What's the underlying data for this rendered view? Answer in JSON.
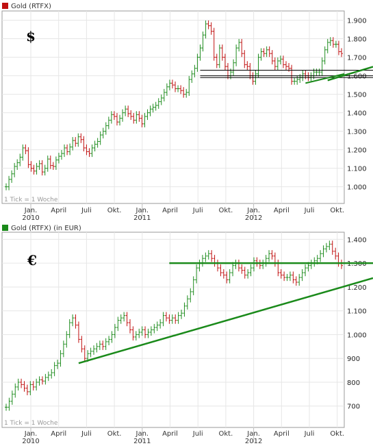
{
  "colors": {
    "up": "#1e8c1e",
    "down": "#c01010",
    "trend": "#1a8a1a",
    "grid": "#e6e6e6",
    "frame": "#9a9a9a"
  },
  "chart_data": [
    {
      "type": "ohlc",
      "legend": "Gold (RTFX)",
      "legend_color": "#c01010",
      "currency_symbol": "$",
      "tick_note": "1 Tick = 1 Woche",
      "ylim": [
        910,
        1950
      ],
      "y_ticks": [
        "1.900",
        "1.800",
        "1.700",
        "1.600",
        "1.500",
        "1.400",
        "1.300",
        "1.200",
        "1.100",
        "1.000"
      ],
      "y_tick_values": [
        1900,
        1800,
        1700,
        1600,
        1500,
        1400,
        1300,
        1200,
        1100,
        1000
      ],
      "x_ticks": [
        "Jan.",
        "April",
        "Juli",
        "Okt.",
        "Jan.",
        "April",
        "Juli",
        "Okt.",
        "Jan.",
        "April",
        "Juli",
        "Okt."
      ],
      "x_years": [
        "2010",
        "2011",
        "2012"
      ],
      "weekly_close": [
        1000,
        1040,
        1070,
        1110,
        1130,
        1160,
        1210,
        1195,
        1120,
        1100,
        1085,
        1110,
        1125,
        1080,
        1100,
        1150,
        1115,
        1110,
        1145,
        1165,
        1180,
        1210,
        1190,
        1215,
        1250,
        1235,
        1270,
        1255,
        1210,
        1190,
        1180,
        1210,
        1230,
        1245,
        1280,
        1300,
        1330,
        1360,
        1390,
        1380,
        1350,
        1370,
        1400,
        1420,
        1395,
        1380,
        1360,
        1390,
        1370,
        1340,
        1380,
        1400,
        1420,
        1430,
        1440,
        1460,
        1480,
        1510,
        1540,
        1560,
        1550,
        1530,
        1530,
        1520,
        1500,
        1510,
        1580,
        1610,
        1640,
        1700,
        1750,
        1820,
        1880,
        1870,
        1840,
        1700,
        1660,
        1750,
        1700,
        1650,
        1600,
        1620,
        1670,
        1750,
        1780,
        1720,
        1660,
        1650,
        1600,
        1570,
        1610,
        1700,
        1730,
        1720,
        1740,
        1720,
        1680,
        1650,
        1680,
        1690,
        1660,
        1650,
        1640,
        1570,
        1570,
        1580,
        1590,
        1610,
        1600,
        1590,
        1600,
        1620,
        1620,
        1620,
        1680,
        1740,
        1780,
        1790,
        1770,
        1770,
        1730,
        1720
      ],
      "h_lines": [
        1630,
        1600,
        1590
      ],
      "trendline": {
        "from": [
          116,
          1575
        ],
        "to": [
          146,
          1710
        ]
      },
      "rising_segment": {
        "from": [
          108,
          1560
        ],
        "to": [
          122,
          1610
        ]
      }
    },
    {
      "type": "ohlc",
      "legend": "Gold (RTFX) (in EUR)",
      "legend_color": "#1a8a1a",
      "currency_symbol": "€",
      "tick_note": "1 Tick = 1 Woche",
      "ylim": [
        610,
        1430
      ],
      "y_ticks": [
        "1.400",
        "1.300",
        "1.200",
        "1.100",
        "1.000",
        "900",
        "800",
        "700"
      ],
      "y_tick_values": [
        1400,
        1300,
        1200,
        1100,
        1000,
        900,
        800,
        700
      ],
      "x_ticks": [
        "Jan.",
        "April",
        "Juli",
        "Okt.",
        "Jan.",
        "April",
        "Juli",
        "Okt.",
        "Jan.",
        "April",
        "Juli",
        "Okt."
      ],
      "x_years": [
        "2010",
        "2011",
        "2012"
      ],
      "weekly_close": [
        695,
        720,
        750,
        780,
        800,
        790,
        775,
        760,
        790,
        780,
        800,
        810,
        805,
        820,
        830,
        840,
        870,
        880,
        920,
        960,
        1000,
        1050,
        1070,
        1040,
        980,
        940,
        900,
        920,
        930,
        940,
        950,
        960,
        950,
        970,
        980,
        1000,
        1030,
        1060,
        1070,
        1080,
        1050,
        1020,
        990,
        1000,
        1010,
        1020,
        1000,
        1010,
        1020,
        1030,
        1040,
        1050,
        1080,
        1070,
        1060,
        1070,
        1060,
        1080,
        1090,
        1120,
        1150,
        1180,
        1230,
        1280,
        1300,
        1320,
        1330,
        1340,
        1320,
        1300,
        1280,
        1260,
        1250,
        1230,
        1260,
        1290,
        1300,
        1280,
        1270,
        1250,
        1260,
        1280,
        1310,
        1300,
        1290,
        1300,
        1320,
        1340,
        1330,
        1300,
        1260,
        1250,
        1240,
        1240,
        1250,
        1230,
        1220,
        1240,
        1260,
        1280,
        1290,
        1300,
        1310,
        1320,
        1340,
        1360,
        1370,
        1380,
        1350,
        1330,
        1300,
        1290
      ],
      "h_lines": [
        1300
      ],
      "trendline": {
        "from": [
          24,
          880
        ],
        "to": [
          144,
          1320
        ]
      },
      "resistance": {
        "from": [
          54,
          1300
        ],
        "to": [
          146,
          1300
        ]
      }
    }
  ]
}
